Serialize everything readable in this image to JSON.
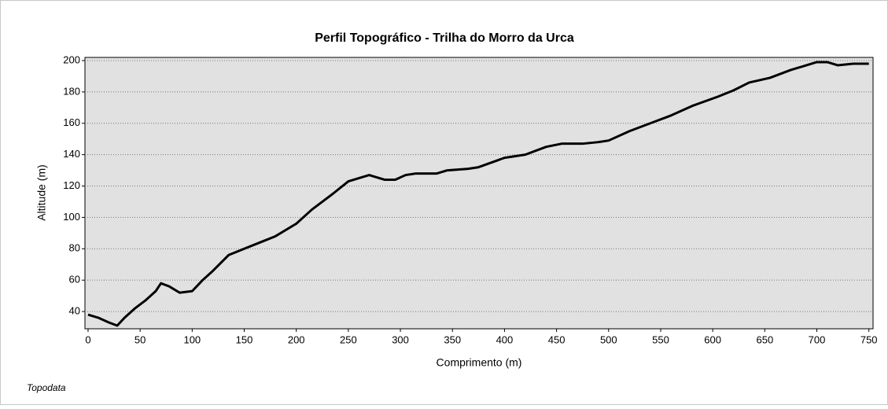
{
  "chart_data": {
    "type": "line",
    "title": "Perfil Topográfico - Trilha do Morro da Urca",
    "xlabel": "Comprimento (m)",
    "ylabel": "Altitude (m)",
    "annotation": "Topodata",
    "x": [
      0,
      10,
      20,
      28,
      35,
      45,
      55,
      65,
      70,
      78,
      88,
      100,
      110,
      120,
      135,
      150,
      165,
      180,
      200,
      215,
      235,
      250,
      260,
      270,
      285,
      295,
      305,
      315,
      335,
      345,
      365,
      375,
      400,
      420,
      440,
      455,
      475,
      490,
      500,
      520,
      540,
      560,
      580,
      605,
      620,
      635,
      655,
      675,
      700,
      710,
      720,
      735,
      750
    ],
    "values": [
      38,
      36,
      33,
      31,
      36,
      42,
      47,
      53,
      58,
      56,
      52,
      53,
      60,
      66,
      76,
      80,
      84,
      88,
      96,
      105,
      115,
      123,
      125,
      127,
      124,
      124,
      127,
      128,
      128,
      130,
      131,
      132,
      138,
      140,
      145,
      147,
      147,
      148,
      149,
      155,
      160,
      165,
      171,
      177,
      181,
      186,
      189,
      194,
      199,
      199,
      197,
      198,
      198
    ],
    "color": "#000000",
    "xlim": [
      -3,
      754
    ],
    "ylim": [
      29,
      202
    ],
    "xticks": [
      0,
      50,
      100,
      150,
      200,
      250,
      300,
      350,
      400,
      450,
      500,
      550,
      600,
      650,
      700,
      750
    ],
    "yticks": [
      40,
      60,
      80,
      100,
      120,
      140,
      160,
      180,
      200
    ],
    "grid": true
  }
}
